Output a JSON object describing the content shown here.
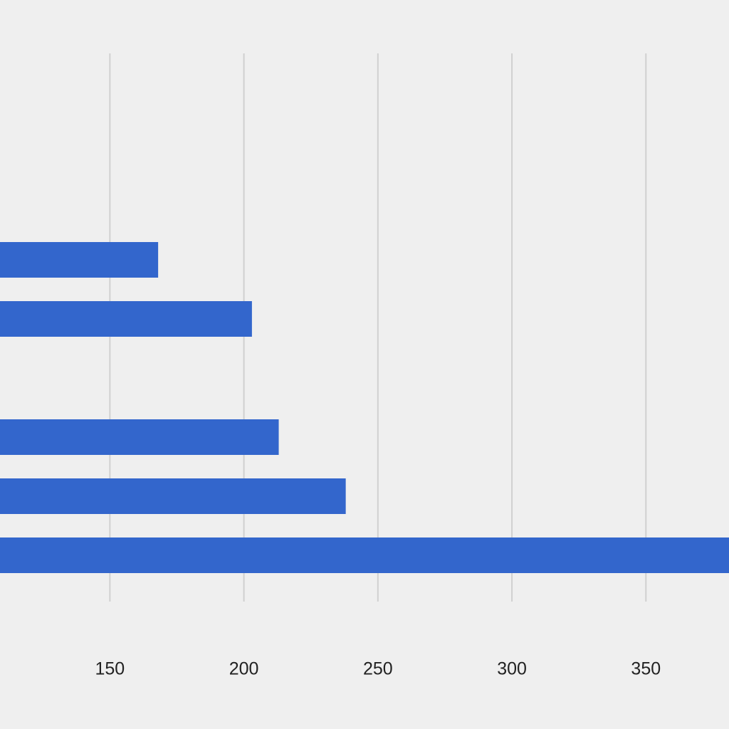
{
  "chart_data": {
    "type": "bar",
    "orientation": "horizontal",
    "categories": [
      null,
      null,
      null,
      null,
      null,
      null,
      null,
      null,
      null
    ],
    "values": [
      null,
      null,
      null,
      168,
      203,
      null,
      213,
      238,
      385
    ],
    "color": "#3366cc",
    "xlim": [
      109,
      381
    ],
    "xticks": [
      150,
      200,
      250,
      300,
      350
    ],
    "grid": true
  }
}
